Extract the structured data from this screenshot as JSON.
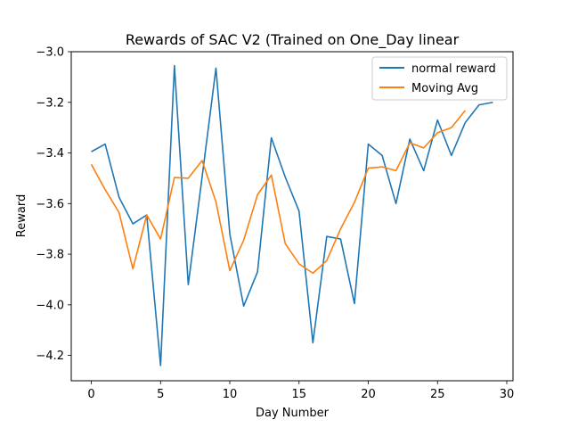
{
  "chart_data": {
    "type": "line",
    "title": "Rewards of SAC V2 (Trained on One_Day linear",
    "xlabel": "Day Number",
    "ylabel": "Reward",
    "xlim": [
      -1.45,
      30.45
    ],
    "ylim": [
      -4.3,
      -3.0
    ],
    "xticks": [
      0,
      5,
      10,
      15,
      20,
      25,
      30
    ],
    "yticks": [
      -4.2,
      -4.0,
      -3.8,
      -3.6,
      -3.4,
      -3.2,
      -3.0
    ],
    "xtick_labels": [
      "0",
      "5",
      "10",
      "15",
      "20",
      "25",
      "30"
    ],
    "ytick_labels": [
      "−4.2",
      "−4.0",
      "−3.8",
      "−3.6",
      "−3.4",
      "−3.2",
      "−3.0"
    ],
    "grid": false,
    "legend_position": "top-right",
    "series": [
      {
        "name": "normal reward",
        "color": "#1f77b4",
        "x": [
          0,
          1,
          2,
          3,
          4,
          5,
          6,
          7,
          8,
          9,
          10,
          11,
          12,
          13,
          14,
          15,
          16,
          17,
          18,
          19,
          20,
          21,
          22,
          23,
          24,
          25,
          26,
          27,
          28,
          29
        ],
        "values": [
          -3.395,
          -3.365,
          -3.575,
          -3.68,
          -3.645,
          -4.24,
          -3.055,
          -3.92,
          -3.495,
          -3.065,
          -3.72,
          -4.005,
          -3.87,
          -3.34,
          -3.495,
          -3.63,
          -4.15,
          -3.73,
          -3.74,
          -3.995,
          -3.365,
          -3.41,
          -3.6,
          -3.345,
          -3.47,
          -3.27,
          -3.41,
          -3.28,
          -3.21,
          -3.2
        ]
      },
      {
        "name": "Moving Avg",
        "color": "#ff7f0e",
        "x": [
          0,
          1,
          2,
          3,
          4,
          5,
          6,
          7,
          8,
          9,
          10,
          11,
          12,
          13,
          14,
          15,
          16,
          17,
          18,
          19,
          20,
          21,
          22,
          23,
          24,
          25,
          26,
          27
        ],
        "values": [
          -3.445,
          -3.545,
          -3.635,
          -3.858,
          -3.645,
          -3.74,
          -3.497,
          -3.5,
          -3.43,
          -3.593,
          -3.865,
          -3.745,
          -3.565,
          -3.487,
          -3.758,
          -3.838,
          -3.875,
          -3.825,
          -3.7,
          -3.595,
          -3.46,
          -3.455,
          -3.47,
          -3.36,
          -3.38,
          -3.32,
          -3.3,
          -3.232
        ]
      }
    ]
  }
}
